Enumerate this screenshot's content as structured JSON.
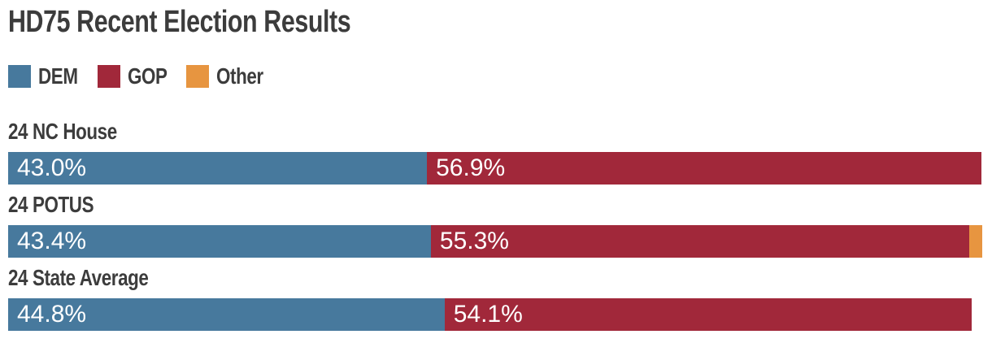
{
  "title": "HD75 Recent Election Results",
  "colors": {
    "dem": "#47799d",
    "gop": "#a1283a",
    "other": "#e79540",
    "heading_text": "#3c3c3c",
    "bar_value_text": "#ffffff",
    "background": "#ffffff"
  },
  "chart_data": {
    "type": "bar",
    "stacked": true,
    "orientation": "horizontal",
    "title": "HD75 Recent Election Results",
    "xlim": [
      0,
      100
    ],
    "grid": false,
    "legend_position": "top",
    "legend_items": [
      {
        "label": "DEM",
        "color": "#47799d"
      },
      {
        "label": "GOP",
        "color": "#a1283a"
      },
      {
        "label": "Other",
        "color": "#e79540"
      }
    ],
    "categories": [
      "24 NC House",
      "24 POTUS",
      "24 State Average"
    ],
    "series": [
      {
        "name": "DEM",
        "color": "#47799d",
        "values": [
          43.0,
          43.4,
          44.8
        ],
        "labels": [
          "43.0%",
          "43.4%",
          "44.8%"
        ]
      },
      {
        "name": "GOP",
        "color": "#a1283a",
        "values": [
          56.9,
          55.3,
          54.1
        ],
        "labels": [
          "56.9%",
          "55.3%",
          "54.1%"
        ]
      },
      {
        "name": "Other",
        "color": "#e79540",
        "values": [
          0,
          1.3,
          0
        ],
        "labels": [
          "",
          "",
          ""
        ]
      }
    ]
  }
}
